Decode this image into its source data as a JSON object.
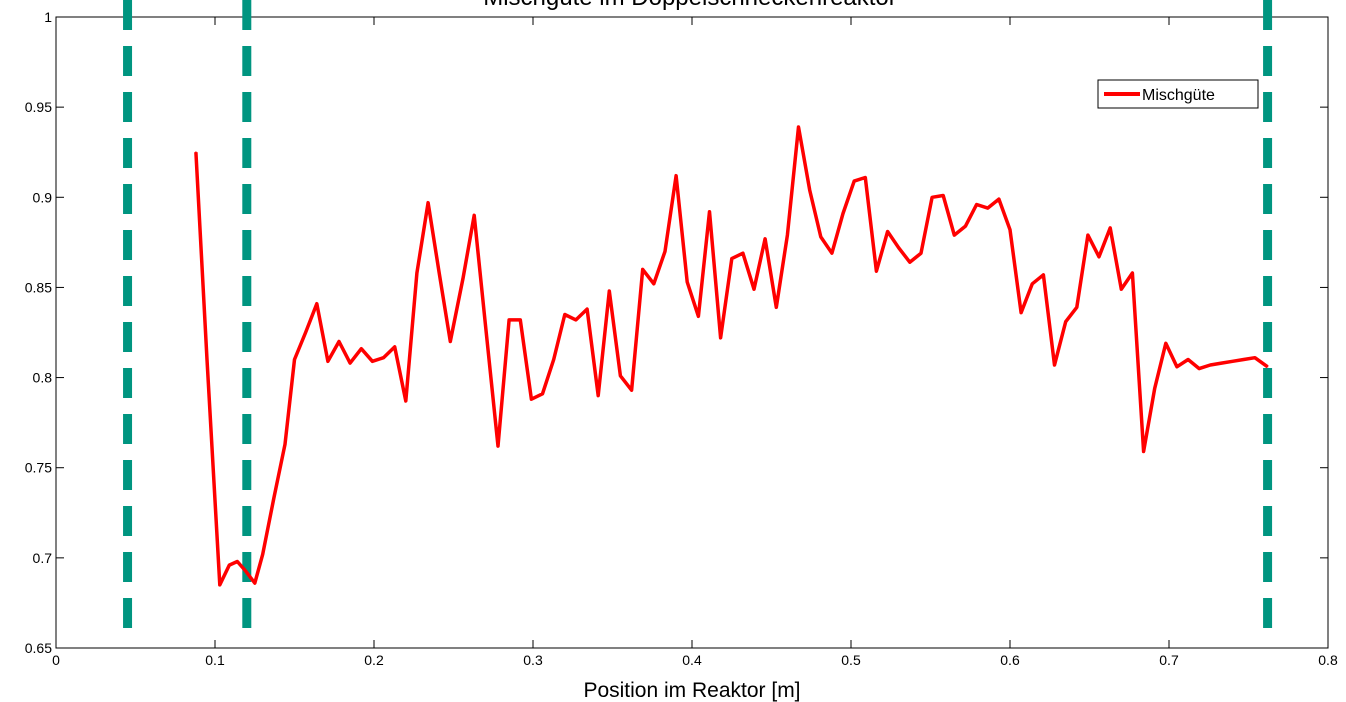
{
  "chart_data": {
    "type": "line",
    "title": "Mischgüte im Doppelschneckenreaktor",
    "xlabel": "Position im Reaktor [m]",
    "ylabel": "",
    "xlim": [
      0,
      0.8
    ],
    "ylim": [
      0.65,
      1.0
    ],
    "xticks": [
      0,
      0.1,
      0.2,
      0.3,
      0.4,
      0.5,
      0.6,
      0.7,
      0.8
    ],
    "yticks": [
      0.65,
      0.7,
      0.75,
      0.8,
      0.85,
      0.9,
      0.95,
      1.0
    ],
    "xtick_labels": [
      "0",
      "0.1",
      "0.2",
      "0.3",
      "0.4",
      "0.5",
      "0.6",
      "0.7",
      "0.8"
    ],
    "ytick_labels": [
      "0.65",
      "0.7",
      "0.75",
      "0.8",
      "0.85",
      "0.9",
      "0.95",
      "1"
    ],
    "grid": false,
    "legend_position": "top-right",
    "series": [
      {
        "name": "Mischgüte",
        "color": "#ff0000",
        "x": [
          0.088,
          0.095,
          0.103,
          0.109,
          0.114,
          0.119,
          0.125,
          0.13,
          0.137,
          0.144,
          0.15,
          0.157,
          0.164,
          0.171,
          0.178,
          0.185,
          0.192,
          0.199,
          0.206,
          0.213,
          0.22,
          0.227,
          0.234,
          0.241,
          0.248,
          0.256,
          0.263,
          0.27,
          0.278,
          0.285,
          0.292,
          0.299,
          0.306,
          0.313,
          0.32,
          0.327,
          0.334,
          0.341,
          0.348,
          0.355,
          0.362,
          0.369,
          0.376,
          0.383,
          0.39,
          0.397,
          0.404,
          0.411,
          0.418,
          0.425,
          0.432,
          0.439,
          0.446,
          0.453,
          0.46,
          0.467,
          0.474,
          0.481,
          0.488,
          0.495,
          0.502,
          0.509,
          0.516,
          0.523,
          0.53,
          0.537,
          0.544,
          0.551,
          0.558,
          0.565,
          0.572,
          0.579,
          0.586,
          0.593,
          0.6,
          0.607,
          0.614,
          0.621,
          0.628,
          0.635,
          0.642,
          0.649,
          0.656,
          0.663,
          0.67,
          0.677,
          0.684,
          0.691,
          0.698,
          0.705,
          0.712,
          0.719,
          0.726,
          0.733,
          0.74,
          0.747,
          0.754,
          0.762
        ],
        "y": [
          0.925,
          0.81,
          0.685,
          0.696,
          0.698,
          0.693,
          0.686,
          0.702,
          0.733,
          0.763,
          0.81,
          0.825,
          0.841,
          0.809,
          0.82,
          0.808,
          0.816,
          0.809,
          0.811,
          0.817,
          0.787,
          0.858,
          0.897,
          0.858,
          0.82,
          0.855,
          0.89,
          0.83,
          0.762,
          0.832,
          0.832,
          0.788,
          0.791,
          0.81,
          0.835,
          0.832,
          0.838,
          0.79,
          0.848,
          0.801,
          0.793,
          0.86,
          0.852,
          0.87,
          0.912,
          0.853,
          0.834,
          0.892,
          0.822,
          0.866,
          0.869,
          0.849,
          0.877,
          0.839,
          0.879,
          0.939,
          0.904,
          0.878,
          0.869,
          0.891,
          0.909,
          0.911,
          0.859,
          0.881,
          0.872,
          0.864,
          0.869,
          0.9,
          0.901,
          0.879,
          0.884,
          0.896,
          0.894,
          0.899,
          0.882,
          0.836,
          0.852,
          0.857,
          0.807,
          0.831,
          0.839,
          0.879,
          0.867,
          0.883,
          0.849,
          0.858,
          0.759,
          0.794,
          0.819,
          0.806,
          0.81,
          0.805,
          0.807,
          0.808,
          0.809,
          0.81,
          0.811,
          0.806
        ]
      }
    ],
    "reference_lines": [
      {
        "x": 0.045,
        "color": "#009580",
        "style": "dashed"
      },
      {
        "x": 0.12,
        "color": "#009580",
        "style": "dashed"
      },
      {
        "x": 0.762,
        "color": "#009580",
        "style": "dashed"
      }
    ]
  }
}
